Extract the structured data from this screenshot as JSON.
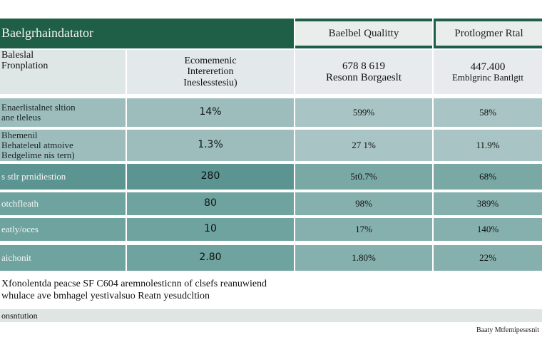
{
  "table": {
    "header": {
      "col0": "Baelgrhaindatator",
      "col2": "Baelbel Qualitty",
      "col3": "Protlogmer Rtal"
    },
    "subheader": {
      "col0": [
        "Baleslal",
        "Fronplation"
      ],
      "col1": [
        "Ecomemenic",
        "Intereretion",
        "Ineslesstesiu)"
      ],
      "col2": [
        "678 8 619",
        "Resonn Borgaeslt"
      ],
      "col3": [
        "447.400",
        "Emblgrinc Bantlgtt"
      ]
    },
    "rows": [
      {
        "label": [
          "Enaerlistalnet sltion",
          "ane tleleus"
        ],
        "economic": "14%",
        "quality": "599%",
        "rate": "58%"
      },
      {
        "label": [
          "Bhemenil",
          "Behateleul atmoive",
          "Bedgelime nis tern)"
        ],
        "economic": "1.3%",
        "quality": "27 1%",
        "rate": "11.9%"
      },
      {
        "label": [
          "s stlr prnidiestion"
        ],
        "economic": "280",
        "quality": "5t0.7%",
        "rate": "68%"
      },
      {
        "label": [
          "otchfleath"
        ],
        "economic": "80",
        "quality": "98%",
        "rate": "389%"
      },
      {
        "label": [
          "eatly/oces"
        ],
        "economic": "10",
        "quality": "17%",
        "rate": "140%"
      },
      {
        "label": [
          "aichonit"
        ],
        "economic": "2.80",
        "quality": "1.80%",
        "rate": "22%"
      }
    ]
  },
  "notes": [
    "Xfonolentda peacse SF C604 aremnolesticnn of clsefs reanuwiend",
    "whulace ave bmhagel yestivalsuo Reatn yesudcltion"
  ],
  "footer_bar": "onsntution",
  "source": "Baaty Mtfemipesesnit"
}
